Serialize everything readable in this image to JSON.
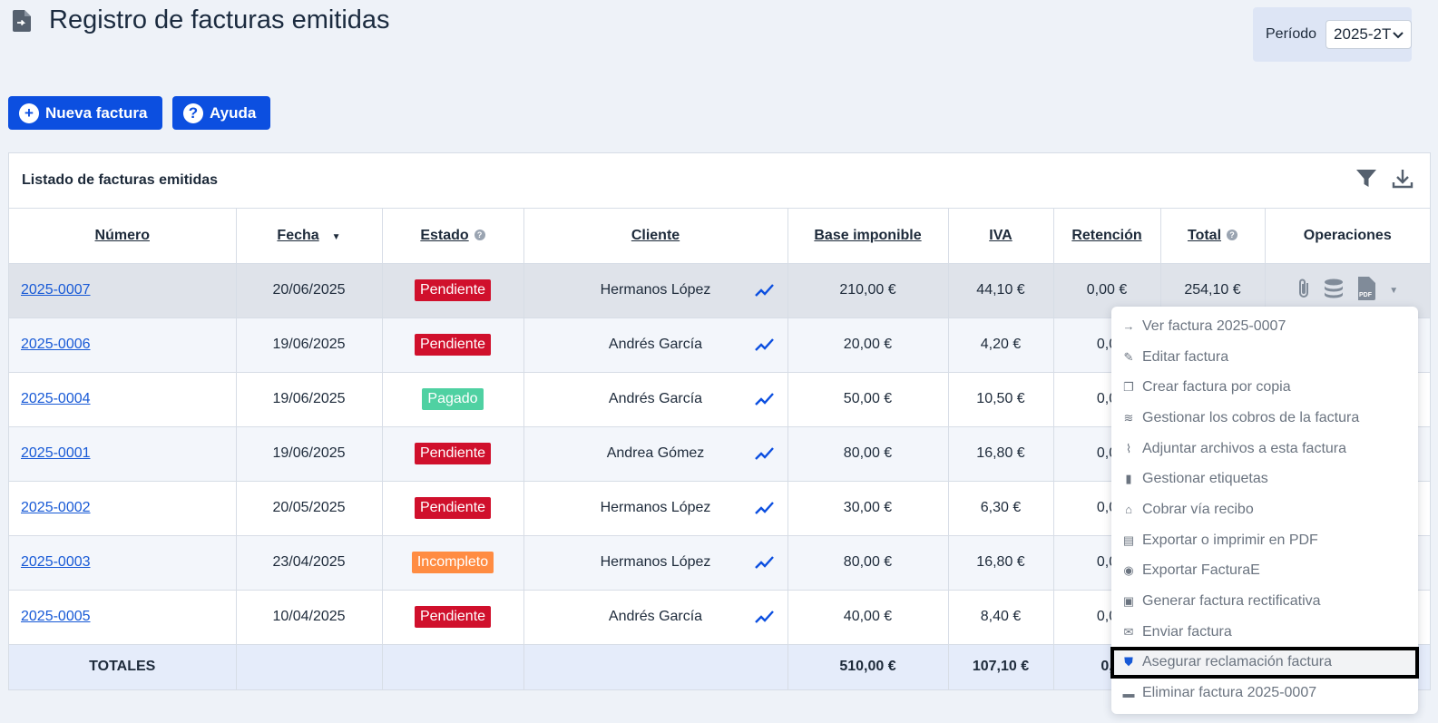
{
  "header": {
    "title": "Registro de facturas emitidas"
  },
  "period": {
    "label": "Período",
    "value": "2025-2T"
  },
  "buttons": {
    "new_invoice": "Nueva factura",
    "help": "Ayuda"
  },
  "panel": {
    "title": "Listado de facturas emitidas"
  },
  "table": {
    "columns": [
      "Número",
      "Fecha",
      "Estado",
      "Cliente",
      "Base imponible",
      "IVA",
      "Retención",
      "Total",
      "Operaciones"
    ],
    "rows": [
      {
        "numero": "2025-0007",
        "fecha": "20/06/2025",
        "estado": "Pendiente",
        "cliente": "Hermanos López",
        "base": "210,00 €",
        "iva": "44,10 €",
        "retencion": "0,00 €",
        "total": "254,10 €"
      },
      {
        "numero": "2025-0006",
        "fecha": "19/06/2025",
        "estado": "Pendiente",
        "cliente": "Andrés García",
        "base": "20,00 €",
        "iva": "4,20 €",
        "retencion": "0,0",
        "total": ""
      },
      {
        "numero": "2025-0004",
        "fecha": "19/06/2025",
        "estado": "Pagado",
        "cliente": "Andrés García",
        "base": "50,00 €",
        "iva": "10,50 €",
        "retencion": "0,0",
        "total": ""
      },
      {
        "numero": "2025-0001",
        "fecha": "19/06/2025",
        "estado": "Pendiente",
        "cliente": "Andrea Gómez",
        "base": "80,00 €",
        "iva": "16,80 €",
        "retencion": "0,0",
        "total": ""
      },
      {
        "numero": "2025-0002",
        "fecha": "20/05/2025",
        "estado": "Pendiente",
        "cliente": "Hermanos López",
        "base": "30,00 €",
        "iva": "6,30 €",
        "retencion": "0,0",
        "total": ""
      },
      {
        "numero": "2025-0003",
        "fecha": "23/04/2025",
        "estado": "Incompleto",
        "cliente": "Hermanos López",
        "base": "80,00 €",
        "iva": "16,80 €",
        "retencion": "0,0",
        "total": ""
      },
      {
        "numero": "2025-0005",
        "fecha": "10/04/2025",
        "estado": "Pendiente",
        "cliente": "Andrés García",
        "base": "40,00 €",
        "iva": "8,40 €",
        "retencion": "0,0",
        "total": ""
      }
    ],
    "totals": {
      "label": "TOTALES",
      "base": "510,00 €",
      "iva": "107,10 €",
      "retencion": "0,",
      "total": ""
    }
  },
  "status_colors": {
    "Pendiente": "#d0102c",
    "Pagado": "#4fd1a2",
    "Incompleto": "#ff8c42"
  },
  "menu": {
    "items": [
      {
        "label": "Ver factura 2025-0007",
        "icon": "arrow-right-icon"
      },
      {
        "label": "Editar factura",
        "icon": "pencil-icon"
      },
      {
        "label": "Crear factura por copia",
        "icon": "copy-icon"
      },
      {
        "label": "Gestionar los cobros de la factura",
        "icon": "coins-icon"
      },
      {
        "label": "Adjuntar archivos a esta factura",
        "icon": "paperclip-icon"
      },
      {
        "label": "Gestionar etiquetas",
        "icon": "bookmark-icon"
      },
      {
        "label": "Cobrar vía recibo",
        "icon": "bank-icon"
      },
      {
        "label": "Exportar o imprimir en PDF",
        "icon": "pdf-icon"
      },
      {
        "label": "Exportar FacturaE",
        "icon": "facturae-icon"
      },
      {
        "label": "Generar factura rectificativa",
        "icon": "file-plus-icon"
      },
      {
        "label": "Enviar factura",
        "icon": "envelope-icon"
      },
      {
        "label": "Asegurar reclamación factura",
        "icon": "shield-check-icon"
      },
      {
        "label": "Eliminar factura 2025-0007",
        "icon": "trash-icon"
      }
    ]
  }
}
